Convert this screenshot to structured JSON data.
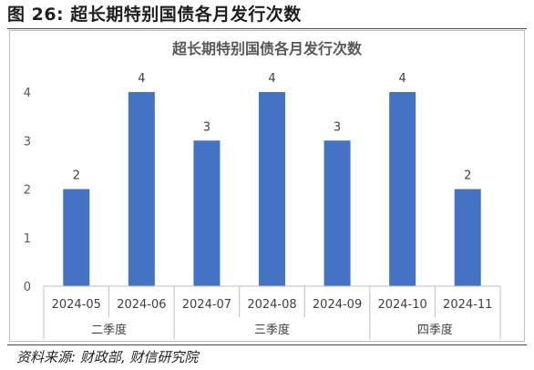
{
  "figure": {
    "title": "图 26:  超长期特别国债各月发行次数",
    "source": "资料来源:  财政部,  财信研究院"
  },
  "chart_data": {
    "type": "bar",
    "title": "超长期特别国债各月发行次数",
    "xlabel": "",
    "ylabel": "",
    "categories": [
      "2024-05",
      "2024-06",
      "2024-07",
      "2024-08",
      "2024-09",
      "2024-10",
      "2024-11"
    ],
    "values": [
      2,
      4,
      3,
      4,
      3,
      4,
      2
    ],
    "groups": [
      {
        "label": "二季度",
        "members": [
          "2024-05",
          "2024-06"
        ]
      },
      {
        "label": "三季度",
        "members": [
          "2024-07",
          "2024-08",
          "2024-09"
        ]
      },
      {
        "label": "四季度",
        "members": [
          "2024-10",
          "2024-11"
        ]
      }
    ],
    "ylim": [
      0,
      4
    ],
    "yticks": [
      0,
      1,
      2,
      3,
      4
    ],
    "bar_color": "#4472C4",
    "data_labels": true,
    "grid": false,
    "legend": "none"
  }
}
